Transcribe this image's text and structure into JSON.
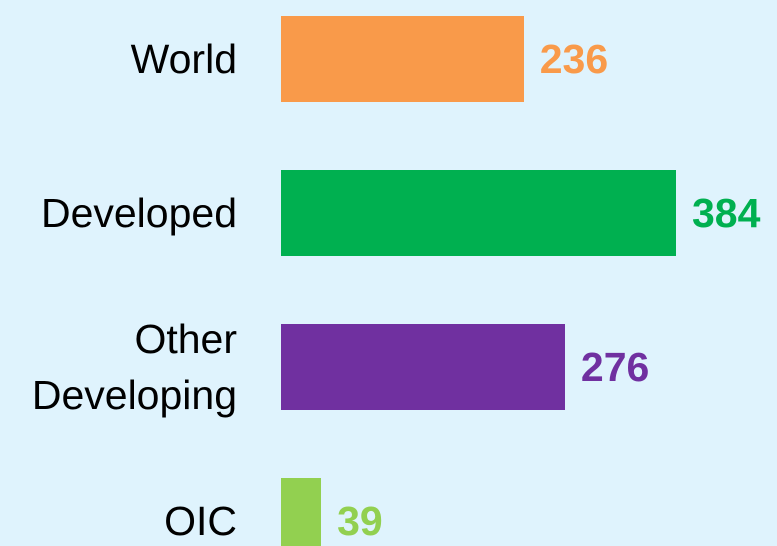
{
  "chart_data": {
    "type": "bar",
    "orientation": "horizontal",
    "categories": [
      "World",
      "Developed",
      "Other Developing",
      "OIC"
    ],
    "values": [
      236,
      384,
      276,
      39
    ],
    "colors": [
      "#f99a4a",
      "#00b050",
      "#7030a0",
      "#92d050"
    ]
  }
}
